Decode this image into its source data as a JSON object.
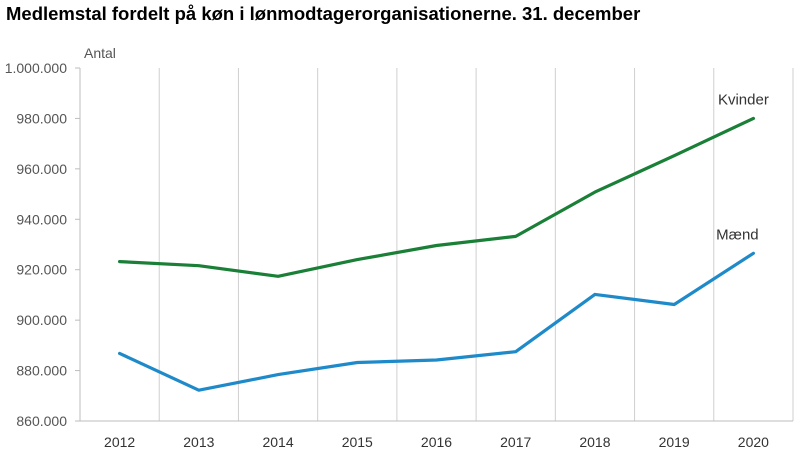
{
  "chart_data": {
    "type": "line",
    "title": "Medlemstal fordelt på køn i lønmodtagerorganisationerne. 31. december",
    "ylabel": "Antal",
    "xlabel": "",
    "categories": [
      "2012",
      "2013",
      "2014",
      "2015",
      "2016",
      "2017",
      "2018",
      "2019",
      "2020"
    ],
    "ylim": [
      860000,
      1000000
    ],
    "yticks": [
      860000,
      880000,
      900000,
      920000,
      940000,
      960000,
      980000,
      1000000
    ],
    "ytick_labels": [
      "860.000",
      "880.000",
      "900.000",
      "920.000",
      "940.000",
      "960.000",
      "980.000",
      "1.000.000"
    ],
    "grid": "vertical",
    "series": [
      {
        "name": "Kvinder",
        "color": "#1a7f37",
        "values": [
          923200,
          921600,
          917400,
          924000,
          929600,
          933200,
          950800,
          965200,
          980000
        ]
      },
      {
        "name": "Mænd",
        "color": "#1f8ac9",
        "values": [
          886800,
          872200,
          878400,
          883200,
          884200,
          887500,
          910200,
          906200,
          926500
        ]
      }
    ]
  }
}
